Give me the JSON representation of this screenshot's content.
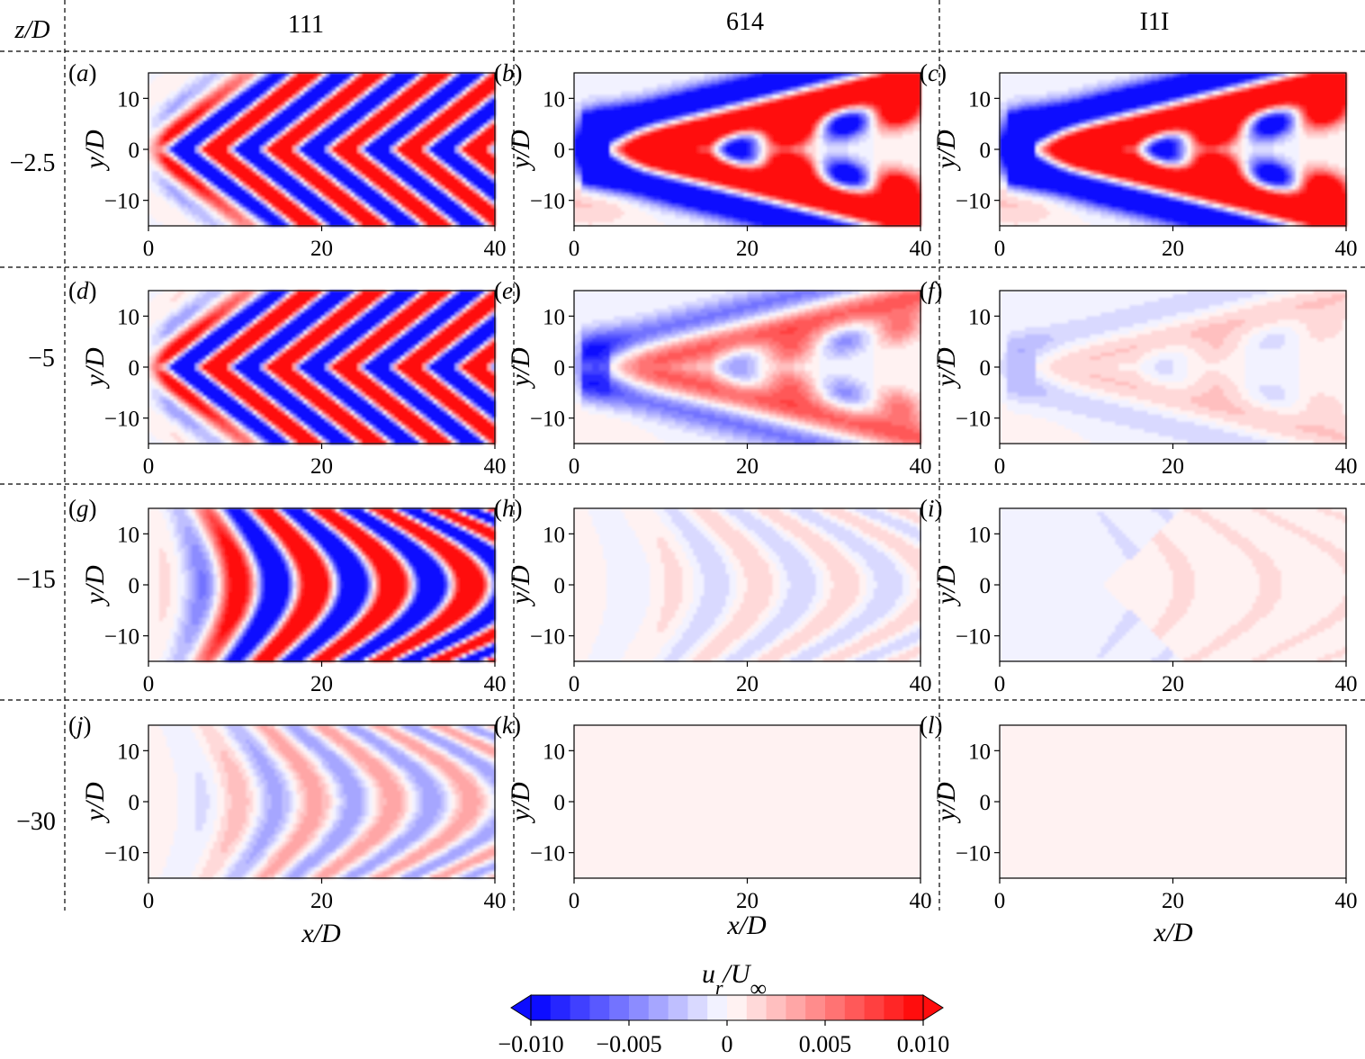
{
  "chart_data": {
    "type": "heatmap",
    "description_role": "contour maps of u_r/U_inf in x/D–y/D planes at several z/D depths for three cases",
    "column_header_label": "z/D",
    "columns": [
      "111",
      "614",
      "I1I"
    ],
    "rows": [
      "−2.5",
      "−5",
      "−15",
      "−30"
    ],
    "row_z_values": [
      -2.5,
      -5,
      -15,
      -30
    ],
    "panel_labels": [
      "(a)",
      "(b)",
      "(c)",
      "(d)",
      "(e)",
      "(f)",
      "(g)",
      "(h)",
      "(i)",
      "(j)",
      "(k)",
      "(l)"
    ],
    "xlabel": "x/D",
    "ylabel": "y/D",
    "xlim": [
      0,
      40
    ],
    "ylim": [
      -15,
      15
    ],
    "xticks": [
      0,
      20,
      40
    ],
    "xtick_labels": [
      "0",
      "20",
      "40"
    ],
    "yticks": [
      10,
      0,
      -10
    ],
    "ytick_labels": [
      "10",
      "0",
      "−10"
    ],
    "colorbar": {
      "label": "u_r/U_∞",
      "label_main": "u",
      "label_sub": "r",
      "label_rest": "/U",
      "label_inf": "∞",
      "range": [
        -0.01,
        0.01
      ],
      "levels": 20,
      "extend": "both",
      "cmap": "bwr",
      "ticks": [
        -0.01,
        -0.005,
        0,
        0.005,
        0.01
      ],
      "tick_labels": [
        "−0.010",
        "−0.005",
        "0",
        "0.005",
        "0.010"
      ]
    },
    "series_note": "Panel field amplitudes (fraction of colorbar max, estimated)",
    "panel_amplitude": [
      [
        1.0,
        1.0,
        1.0
      ],
      [
        1.0,
        0.6,
        0.35
      ],
      [
        1.0,
        0.25,
        0.04
      ],
      [
        0.45,
        0.08,
        0.02
      ]
    ]
  },
  "colors": {
    "negative": "#0000ff",
    "zero": "#ffffff",
    "positive": "#ff0000",
    "frame": "#000000"
  }
}
